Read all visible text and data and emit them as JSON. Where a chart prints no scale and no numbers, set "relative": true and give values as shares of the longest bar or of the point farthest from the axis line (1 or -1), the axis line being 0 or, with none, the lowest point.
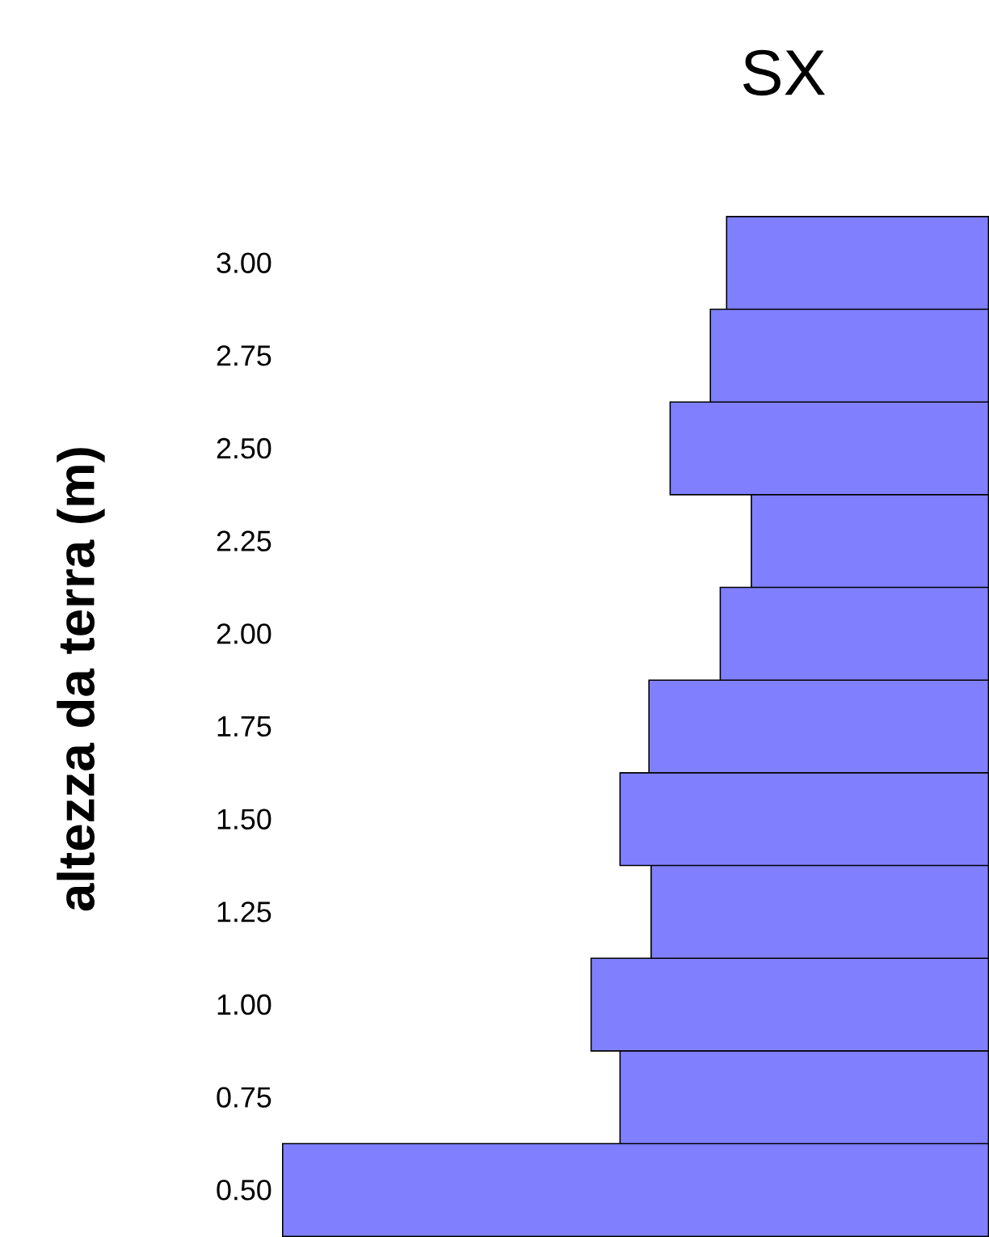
{
  "chart_data": {
    "type": "bar",
    "orientation": "horizontal",
    "relative": true,
    "title": "SX",
    "ylabel": "altezza da terra (m)",
    "categories": [
      "3.00",
      "2.75",
      "2.50",
      "2.25",
      "2.00",
      "1.75",
      "1.50",
      "1.25",
      "1.00",
      "0.75",
      "0.50"
    ],
    "values": [
      0.371,
      0.394,
      0.451,
      0.336,
      0.38,
      0.481,
      0.522,
      0.478,
      0.563,
      0.522,
      1
    ],
    "color": "#8080ff"
  }
}
